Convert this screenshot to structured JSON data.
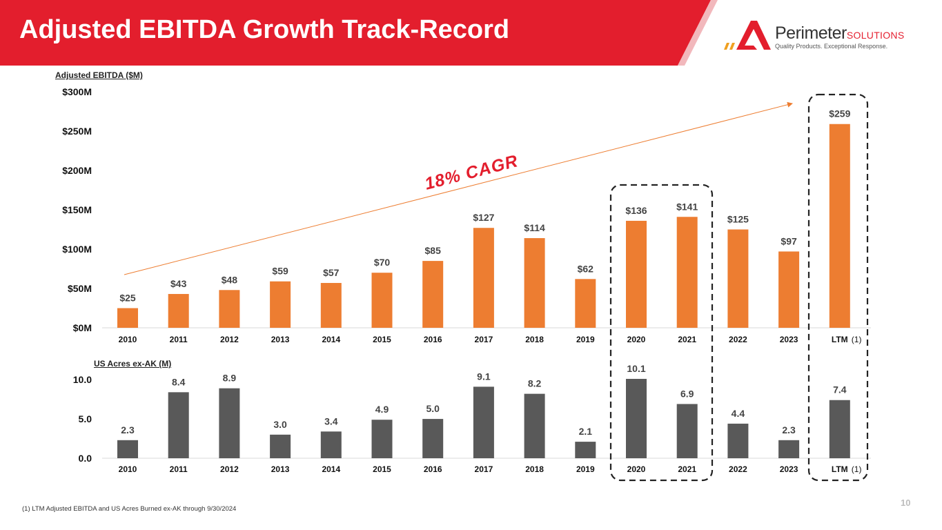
{
  "header": {
    "title": "Adjusted EBITDA Growth Track-Record"
  },
  "logo": {
    "name": "Perimeter",
    "suffix": "SOLUTIONS",
    "tagline": "Quality Products. Exceptional Response."
  },
  "colors": {
    "banner": "#e31e2d",
    "bar_primary": "#ed7d31",
    "bar_secondary": "#595959",
    "highlight_box": "#222222"
  },
  "chart_data": [
    {
      "type": "bar",
      "title": "Adjusted EBITDA ($M)",
      "categories": [
        "2010",
        "2011",
        "2012",
        "2013",
        "2014",
        "2015",
        "2016",
        "2017",
        "2018",
        "2019",
        "2020",
        "2021",
        "2022",
        "2023",
        "LTM"
      ],
      "values": [
        25,
        43,
        48,
        59,
        57,
        70,
        85,
        127,
        114,
        62,
        136,
        141,
        125,
        97,
        259
      ],
      "data_labels": [
        "$25",
        "$43",
        "$48",
        "$59",
        "$57",
        "$70",
        "$85",
        "$127",
        "$114",
        "$62",
        "$136",
        "$141",
        "$125",
        "$97",
        "$259"
      ],
      "yticks": [
        "$0M",
        "$50M",
        "$100M",
        "$150M",
        "$200M",
        "$250M",
        "$300M"
      ],
      "ylim": [
        0,
        300
      ],
      "annotation": "18% CAGR",
      "last_category_note": "(1)"
    },
    {
      "type": "bar",
      "title": "US Acres ex-AK (M)",
      "categories": [
        "2010",
        "2011",
        "2012",
        "2013",
        "2014",
        "2015",
        "2016",
        "2017",
        "2018",
        "2019",
        "2020",
        "2021",
        "2022",
        "2023",
        "LTM"
      ],
      "values": [
        2.3,
        8.4,
        8.9,
        3.0,
        3.4,
        4.9,
        5.0,
        9.1,
        8.2,
        2.1,
        10.1,
        6.9,
        4.4,
        2.3,
        7.4
      ],
      "data_labels": [
        "2.3",
        "8.4",
        "8.9",
        "3.0",
        "3.4",
        "4.9",
        "5.0",
        "9.1",
        "8.2",
        "2.1",
        "10.1",
        "6.9",
        "4.4",
        "2.3",
        "7.4"
      ],
      "yticks": [
        "0.0",
        "5.0",
        "10.0"
      ],
      "ylim": [
        0,
        10.1
      ],
      "last_category_note": "(1)"
    }
  ],
  "footnote": "(1) LTM Adjusted EBITDA and US Acres Burned ex-AK through 9/30/2024",
  "page_number": "10"
}
